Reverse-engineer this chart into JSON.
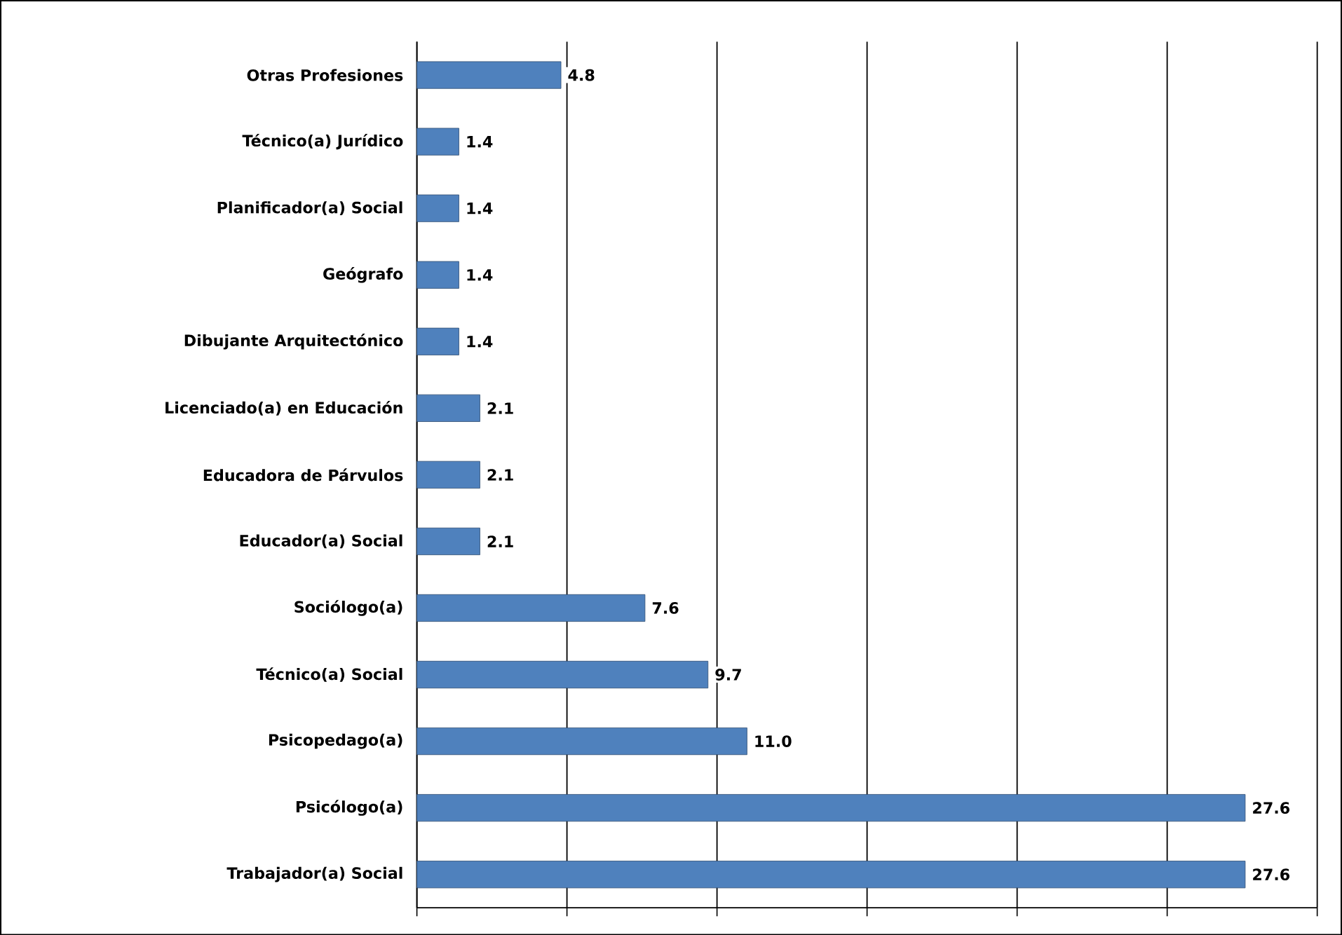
{
  "chart_data": {
    "type": "bar",
    "orientation": "horizontal",
    "categories": [
      "Otras Profesiones",
      "Técnico(a) Jurídico",
      "Planificador(a) Social",
      "Geógrafo",
      "Dibujante Arquitectónico",
      "Licenciado(a) en Educación",
      "Educadora de Párvulos",
      "Educador(a) Social",
      "Sociólogo(a)",
      "Técnico(a) Social",
      "Psicopedago(a)",
      "Psicólogo(a)",
      "Trabajador(a) Social"
    ],
    "values": [
      4.8,
      1.4,
      1.4,
      1.4,
      1.4,
      2.1,
      2.1,
      2.1,
      7.6,
      9.7,
      11.0,
      27.6,
      27.6
    ],
    "color": "#4f81bd",
    "xlim": [
      0,
      30
    ],
    "xticks": [
      {
        "value": 0,
        "label": null
      },
      {
        "value": 5,
        "label": null
      },
      {
        "value": 10,
        "label": null
      },
      {
        "value": 15,
        "label": null
      },
      {
        "value": 20,
        "label": null
      },
      {
        "value": 25,
        "label": null
      },
      {
        "value": 30,
        "label": null
      }
    ],
    "value_labels": [
      "4.8",
      "1.4",
      "1.4",
      "1.4",
      "1.4",
      "2.1",
      "2.1",
      "2.1",
      "7.6",
      "9.7",
      "11.0",
      "27.6",
      "27.6"
    ],
    "tick_labels": "y",
    "grid": "x"
  }
}
